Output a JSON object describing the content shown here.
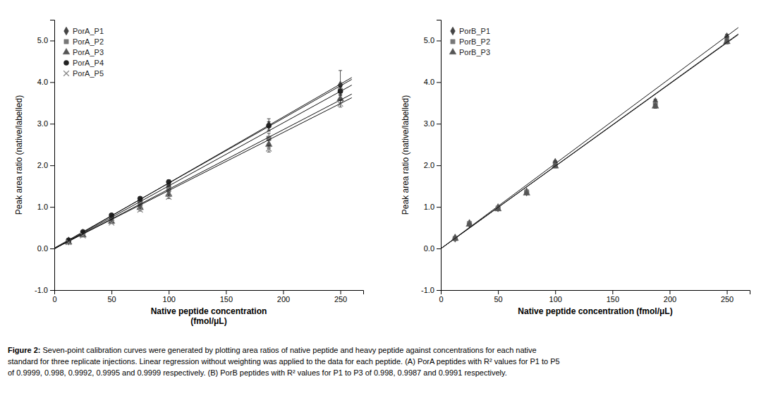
{
  "chart_data": [
    {
      "type": "scatter",
      "xlabel": [
        "Native peptide concentration",
        "(fmol/μL)"
      ],
      "ylabel": "Peak area ratio (native/labelled)",
      "x": [
        12.5,
        25,
        50,
        75,
        100,
        187.5,
        250
      ],
      "xlim": [
        0,
        270
      ],
      "xticks": [
        0,
        50,
        100,
        150,
        200,
        250
      ],
      "ylim": [
        -1.0,
        5.5
      ],
      "yticks": [
        {
          "value": -1.0,
          "label": "-1.0"
        },
        {
          "value": 0.0,
          "label": "0.0"
        },
        {
          "value": 1.0,
          "label": "1.0"
        },
        {
          "value": 2.0,
          "label": "2.0"
        },
        {
          "value": 3.0,
          "label": "3.0"
        },
        {
          "value": 4.0,
          "label": "4.0"
        },
        {
          "value": 5.0,
          "label": "5.0"
        }
      ],
      "grid": false,
      "legend": "upper left",
      "series": [
        {
          "name": "PorA_P1",
          "color": "#444444",
          "marker": "diamond",
          "values": [
            0.18,
            0.37,
            0.75,
            1.13,
            1.5,
            2.97,
            3.93
          ],
          "errors": [
            0.01,
            0.02,
            0.03,
            0.04,
            0.05,
            0.15,
            0.35
          ]
        },
        {
          "type": "line",
          "color": "#111111",
          "x": [
            0,
            260
          ],
          "values": [
            -0.01,
            4.111
          ]
        },
        {
          "name": "PorA_P2",
          "color": "#777777",
          "marker": "square",
          "values": [
            0.18,
            0.36,
            0.72,
            1.07,
            1.42,
            2.65,
            3.8
          ],
          "errors": [
            0.01,
            0.02,
            0.03,
            0.04,
            0.05,
            0.12,
            0.1
          ]
        },
        {
          "type": "line",
          "color": "#111111",
          "x": [
            0,
            260
          ],
          "values": [
            -0.01,
            3.929
          ]
        },
        {
          "name": "PorA_P3",
          "color": "#555555",
          "marker": "triangle",
          "values": [
            0.15,
            0.32,
            0.65,
            0.98,
            1.3,
            2.5,
            3.6
          ],
          "errors": [
            0.01,
            0.02,
            0.03,
            0.04,
            0.05,
            0.1,
            0.1
          ]
        },
        {
          "type": "line",
          "color": "#111111",
          "x": [
            0,
            260
          ],
          "values": [
            -0.005,
            3.713
          ]
        },
        {
          "name": "PorA_P4",
          "color": "#222222",
          "marker": "circle",
          "values": [
            0.2,
            0.4,
            0.8,
            1.2,
            1.6,
            2.95,
            3.78
          ],
          "errors": [
            0.01,
            0.02,
            0.03,
            0.04,
            0.05,
            0.1,
            0.1
          ]
        },
        {
          "type": "line",
          "color": "#111111",
          "x": [
            0,
            260
          ],
          "values": [
            0.01,
            4.066
          ]
        },
        {
          "name": "PorA_P5",
          "color": "#888888",
          "marker": "cross",
          "values": [
            0.15,
            0.31,
            0.62,
            0.93,
            1.24,
            2.4,
            3.48
          ],
          "errors": [
            0.01,
            0.02,
            0.02,
            0.03,
            0.04,
            0.08,
            0.08
          ]
        },
        {
          "type": "line",
          "color": "#111111",
          "x": [
            0,
            260
          ],
          "values": [
            -0.002,
            3.625
          ]
        }
      ]
    },
    {
      "type": "scatter",
      "xlabel": [
        "Native peptide concentration (fmol/μL)"
      ],
      "ylabel": "Peak area ratio (native/labelled)",
      "x": [
        12.5,
        25,
        50,
        75,
        100,
        187.5,
        250
      ],
      "xlim": [
        0,
        270
      ],
      "xticks": [
        0,
        50,
        100,
        150,
        200,
        250
      ],
      "ylim": [
        -1.0,
        5.5
      ],
      "yticks": [
        {
          "value": -1.0,
          "label": "-1.0"
        },
        {
          "value": 0.0,
          "label": "0.0"
        },
        {
          "value": 1.0,
          "label": "1.0"
        },
        {
          "value": 2.0,
          "label": "2.0"
        },
        {
          "value": 3.0,
          "label": "3.0"
        },
        {
          "value": 4.0,
          "label": "4.0"
        },
        {
          "value": 5.0,
          "label": "5.0"
        }
      ],
      "grid": false,
      "legend": "upper left",
      "series": [
        {
          "name": "PorB_P1",
          "color": "#444444",
          "marker": "diamond",
          "values": [
            0.25,
            0.6,
            0.98,
            1.36,
            2.07,
            3.53,
            5.09
          ],
          "errors": [
            0.01,
            0.02,
            0.03,
            0.03,
            0.04,
            0.06,
            0.06
          ]
        },
        {
          "type": "line",
          "color": "#111111",
          "x": [
            0,
            260
          ],
          "values": [
            -0.005,
            5.312
          ]
        },
        {
          "name": "PorB_P2",
          "color": "#777777",
          "marker": "square",
          "values": [
            0.24,
            0.6,
            0.97,
            1.36,
            2.0,
            3.47,
            5.0
          ],
          "errors": [
            0.01,
            0.02,
            0.02,
            0.02,
            0.04,
            0.05,
            0.05
          ]
        },
        {
          "type": "line",
          "color": "#111111",
          "x": [
            0,
            260
          ],
          "values": [
            -0.005,
            5.143
          ]
        },
        {
          "name": "PorB_P3",
          "color": "#555555",
          "marker": "triangle",
          "values": [
            0.24,
            0.58,
            0.95,
            1.33,
            1.98,
            3.42,
            4.97
          ],
          "errors": [
            0.01,
            0.02,
            0.02,
            0.02,
            0.04,
            0.05,
            0.05
          ]
        },
        {
          "type": "line",
          "color": "#111111",
          "x": [
            0,
            260
          ],
          "values": [
            -0.003,
            5.158
          ]
        }
      ]
    }
  ],
  "caption": {
    "label": "Figure 2:",
    "lines": [
      " Seven-point calibration curves were generated by plotting area ratios of native peptide and heavy peptide against concentrations for each native",
      "standard for three replicate injections. Linear regression without weighting was applied to the data for each peptide. (A) PorA peptides with R² values for P1 to P5",
      "of 0.9999, 0.998, 0.9992, 0.9995 and 0.9999 respectively. (B) PorB peptides with R² values for P1 to P3 of 0.998, 0.9987 and 0.9991 respectively."
    ]
  }
}
